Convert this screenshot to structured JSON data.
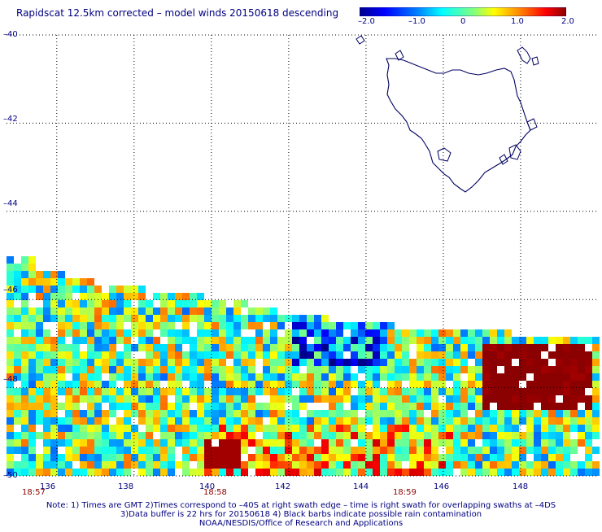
{
  "title": "Rapidscat 12.5km corrected – model winds 20150618 descending",
  "colorbar": {
    "labels": [
      "–2.0",
      "–1.0",
      "0",
      "1.0",
      "2.0"
    ],
    "values": [
      -2.0,
      -1.0,
      0,
      1.0,
      2.0
    ],
    "range": [
      -2.0,
      2.0
    ],
    "colors": [
      "#0000a0",
      "#0000ff",
      "#0080ff",
      "#00ffff",
      "#80ff80",
      "#ffff00",
      "#ff8000",
      "#ff0000",
      "#8b0000"
    ]
  },
  "map": {
    "lon_range": [
      134.7,
      150.0
    ],
    "lat_range": [
      -50.0,
      -40.0
    ],
    "lon_ticks": [
      136,
      138,
      140,
      142,
      144,
      146,
      148
    ],
    "lon_tick_labels": [
      "136",
      "138",
      "140",
      "142",
      "144",
      "146",
      "148"
    ],
    "lat_ticks": [
      -40,
      -42,
      -44,
      -46,
      -48,
      -50
    ],
    "lat_tick_labels": [
      "–40",
      "–42",
      "–44",
      "–46",
      "–48",
      "–50"
    ],
    "grid": "dotted",
    "coastline": "Tasmania",
    "swath_time_labels": [
      {
        "text": "18:57",
        "lon": 134.9
      },
      {
        "text": "18:58",
        "lon": 140.2
      },
      {
        "text": "18:59",
        "lon": 145.0
      }
    ]
  },
  "notes": {
    "line1": "Note: 1) Times are GMT 2)Times correspond to –40S at right swath edge – time is right swath for overlapping swaths at –4DS",
    "line2": "3)Data buffer is 22 hrs for 20150618 4) Black barbs indicate possible rain contamination",
    "line3": "NOAA/NESDIS/Office of Research and Applications"
  }
}
